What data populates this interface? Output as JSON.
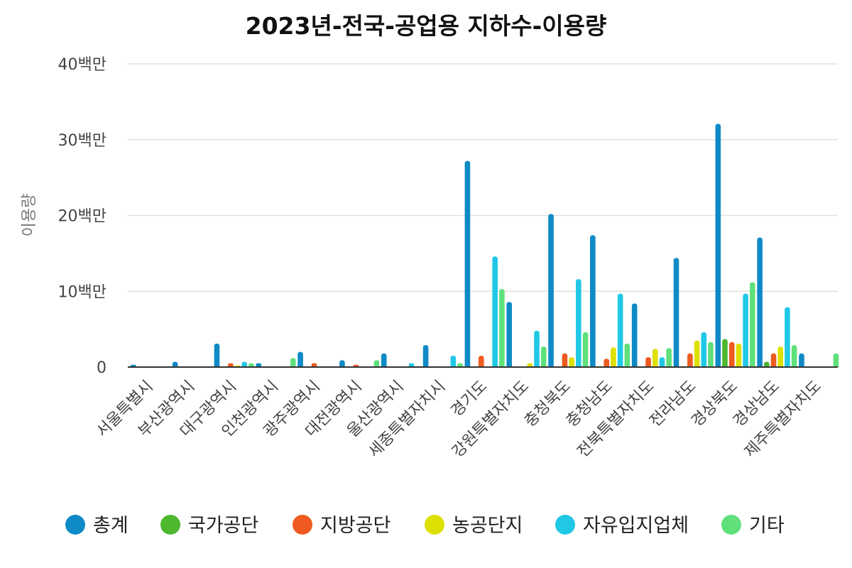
{
  "chart_data": {
    "type": "bar",
    "title": "2023년-전국-공업용 지하수-이용량",
    "xlabel": "",
    "ylabel": "이용량",
    "ylim": [
      0,
      40000000
    ],
    "yticks": [
      {
        "value": 0,
        "label": "0"
      },
      {
        "value": 10000000,
        "label": "10백만"
      },
      {
        "value": 20000000,
        "label": "20백만"
      },
      {
        "value": 30000000,
        "label": "30백만"
      },
      {
        "value": 40000000,
        "label": "40백만"
      }
    ],
    "grid": true,
    "legend_position": "bottom",
    "categories": [
      "서울특별시",
      "부산광역시",
      "대구광역시",
      "인천광역시",
      "광주광역시",
      "대전광역시",
      "울산광역시",
      "세종특별자치시",
      "경기도",
      "강원특별자치도",
      "충청북도",
      "충청남도",
      "전북특별자치도",
      "전라남도",
      "경상북도",
      "경상남도",
      "제주특별자치도"
    ],
    "series": [
      {
        "name": "총계",
        "color": "#0e8ac6",
        "values": [
          300000,
          700000,
          3100000,
          500000,
          2000000,
          900000,
          1800000,
          2900000,
          27200000,
          8600000,
          20200000,
          17400000,
          8400000,
          14400000,
          32100000,
          17100000,
          1800000
        ]
      },
      {
        "name": "국가공단",
        "color": "#4db72e",
        "values": [
          0,
          0,
          50000,
          0,
          0,
          0,
          0,
          0,
          0,
          0,
          0,
          100000,
          0,
          100000,
          3700000,
          700000,
          0
        ]
      },
      {
        "name": "지방공단",
        "color": "#ee5a1f",
        "values": [
          0,
          0,
          500000,
          0,
          500000,
          300000,
          0,
          100000,
          1500000,
          0,
          1800000,
          1100000,
          1300000,
          1800000,
          3300000,
          1800000,
          0
        ]
      },
      {
        "name": "농공단지",
        "color": "#dde000",
        "values": [
          0,
          0,
          200000,
          0,
          0,
          0,
          0,
          0,
          0,
          500000,
          1300000,
          2600000,
          2400000,
          3500000,
          3100000,
          2700000,
          0
        ]
      },
      {
        "name": "자유입지업체",
        "color": "#21c8e6",
        "values": [
          0,
          0,
          700000,
          0,
          100000,
          100000,
          500000,
          1500000,
          14600000,
          4800000,
          11600000,
          9700000,
          1300000,
          4600000,
          9700000,
          7900000,
          0
        ]
      },
      {
        "name": "기타",
        "color": "#5fe07a",
        "values": [
          0,
          100000,
          500000,
          1200000,
          100000,
          900000,
          100000,
          500000,
          10300000,
          2700000,
          4600000,
          3100000,
          2500000,
          3300000,
          11200000,
          2900000,
          1800000
        ]
      }
    ]
  }
}
